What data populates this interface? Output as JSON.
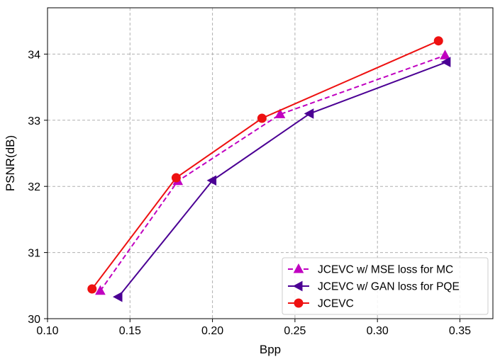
{
  "chart_data": {
    "type": "line",
    "xlabel": "Bpp",
    "ylabel": "PSNR(dB)",
    "xlim": [
      0.1,
      0.37
    ],
    "ylim": [
      30,
      34.7
    ],
    "xticks": [
      0.1,
      0.15,
      0.2,
      0.25,
      0.3,
      0.35
    ],
    "xtick_labels": [
      "0.10",
      "0.15",
      "0.20",
      "0.25",
      "0.30",
      "0.35"
    ],
    "yticks": [
      30,
      31,
      32,
      33,
      34
    ],
    "ytick_labels": [
      "30",
      "31",
      "32",
      "33",
      "34"
    ],
    "grid": true,
    "legend_position": "bottom-right",
    "series": [
      {
        "name": "JCEVC w/ MSE loss for MC",
        "color": "#c000c0",
        "line_style": "dashed",
        "marker": "triangle-up",
        "x": [
          0.132,
          0.179,
          0.241,
          0.341
        ],
        "y": [
          30.42,
          32.08,
          33.09,
          33.98
        ]
      },
      {
        "name": "JCEVC w/ GAN loss for PQE",
        "color": "#4b0094",
        "line_style": "solid",
        "marker": "triangle-left",
        "x": [
          0.143,
          0.2,
          0.259,
          0.342
        ],
        "y": [
          30.33,
          32.09,
          33.1,
          33.88
        ]
      },
      {
        "name": "JCEVC",
        "color": "#ee1111",
        "line_style": "solid",
        "marker": "circle",
        "x": [
          0.127,
          0.178,
          0.23,
          0.337
        ],
        "y": [
          30.45,
          32.13,
          33.03,
          34.2
        ]
      }
    ]
  }
}
